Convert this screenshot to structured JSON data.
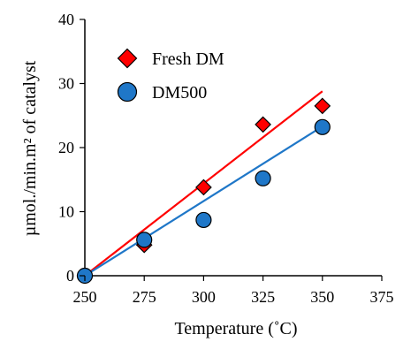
{
  "chart_data": {
    "type": "scatter",
    "title": "",
    "xlabel": "Temperature (˚C)",
    "ylabel": "µmol./min.m² of catalyst",
    "xlim": [
      250,
      375
    ],
    "ylim": [
      0,
      40
    ],
    "xticks": [
      "250",
      "275",
      "300",
      "325",
      "350",
      "375"
    ],
    "yticks": [
      "0",
      "10",
      "20",
      "30",
      "40"
    ],
    "xtick_values": [
      250,
      275,
      300,
      325,
      350,
      375
    ],
    "ytick_values": [
      0,
      10,
      20,
      30,
      40
    ],
    "grid": false,
    "legend_position": "top-left",
    "series": [
      {
        "name": "Fresh DM",
        "marker": "diamond",
        "color": "#ff0000",
        "x": [
          250,
          275,
          300,
          325,
          350
        ],
        "y": [
          0,
          4.8,
          13.8,
          23.6,
          26.5
        ],
        "fit_line": {
          "x": [
            250,
            350
          ],
          "y": [
            0,
            28.8
          ]
        }
      },
      {
        "name": "DM500",
        "marker": "circle",
        "color": "#1f77c8",
        "x": [
          250,
          275,
          300,
          325,
          350
        ],
        "y": [
          0,
          5.6,
          8.7,
          15.2,
          23.2
        ],
        "fit_line": {
          "x": [
            250,
            350
          ],
          "y": [
            0,
            23.3
          ]
        }
      }
    ]
  }
}
